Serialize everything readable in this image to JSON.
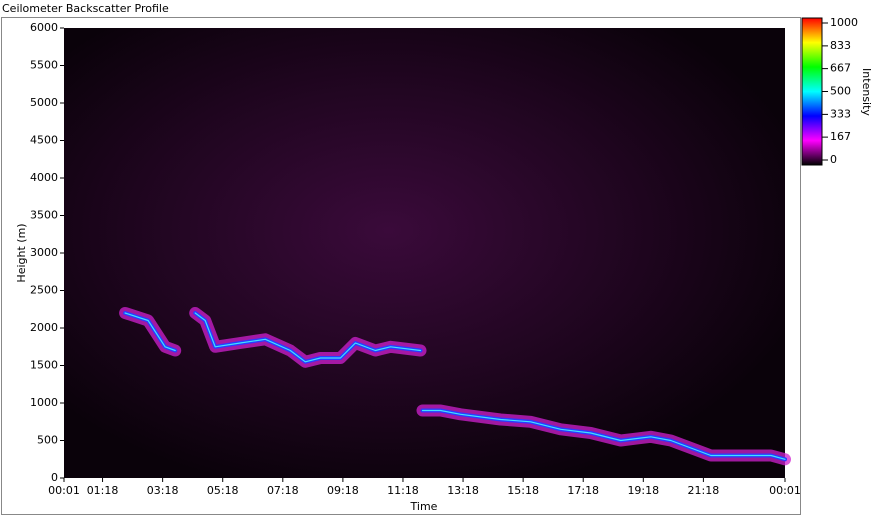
{
  "chart_data": {
    "type": "heatmap",
    "title": "Ceilometer Backscatter Profile",
    "x_label": "Time",
    "y_label": "Height (m)",
    "colorbar_label": "Intensity",
    "xlim": [
      1,
      1441
    ],
    "xticks": [
      {
        "value": 1,
        "label": "00:01"
      },
      {
        "value": 78,
        "label": "01:18"
      },
      {
        "value": 198,
        "label": "03:18"
      },
      {
        "value": 318,
        "label": "05:18"
      },
      {
        "value": 438,
        "label": "07:18"
      },
      {
        "value": 558,
        "label": "09:18"
      },
      {
        "value": 678,
        "label": "11:18"
      },
      {
        "value": 798,
        "label": "13:18"
      },
      {
        "value": 918,
        "label": "15:18"
      },
      {
        "value": 1038,
        "label": "17:18"
      },
      {
        "value": 1158,
        "label": "19:18"
      },
      {
        "value": 1278,
        "label": "21:18"
      },
      {
        "value": 1441,
        "label": "00:01"
      }
    ],
    "ylim": [
      0,
      6000
    ],
    "yticks": [
      0,
      500,
      1000,
      1500,
      2000,
      2500,
      3000,
      3500,
      4000,
      4500,
      5000,
      5500,
      6000
    ],
    "clim": [
      0,
      1000
    ],
    "cticks": [
      0,
      167,
      333,
      500,
      667,
      833,
      1000
    ],
    "colormap": [
      "#000000",
      "#ff00ff",
      "#0000ff",
      "#00ffff",
      "#00ff00",
      "#ffff00",
      "#ff0000"
    ],
    "x": [
      123,
      169,
      203,
      223,
      null,
      263,
      283,
      303,
      353,
      403,
      453,
      483,
      513,
      553,
      583,
      623,
      653,
      713,
      null,
      717,
      753,
      793,
      873,
      933,
      993,
      1053,
      1113,
      1173,
      1213,
      1253,
      1293,
      1353,
      1413,
      1441
    ],
    "values": [
      2200,
      2100,
      1750,
      1700,
      null,
      2200,
      2100,
      1750,
      1800,
      1850,
      1700,
      1550,
      1600,
      1600,
      1800,
      1700,
      1750,
      1700,
      null,
      900,
      900,
      850,
      780,
      750,
      650,
      600,
      500,
      550,
      500,
      400,
      300,
      300,
      300,
      250
    ]
  }
}
